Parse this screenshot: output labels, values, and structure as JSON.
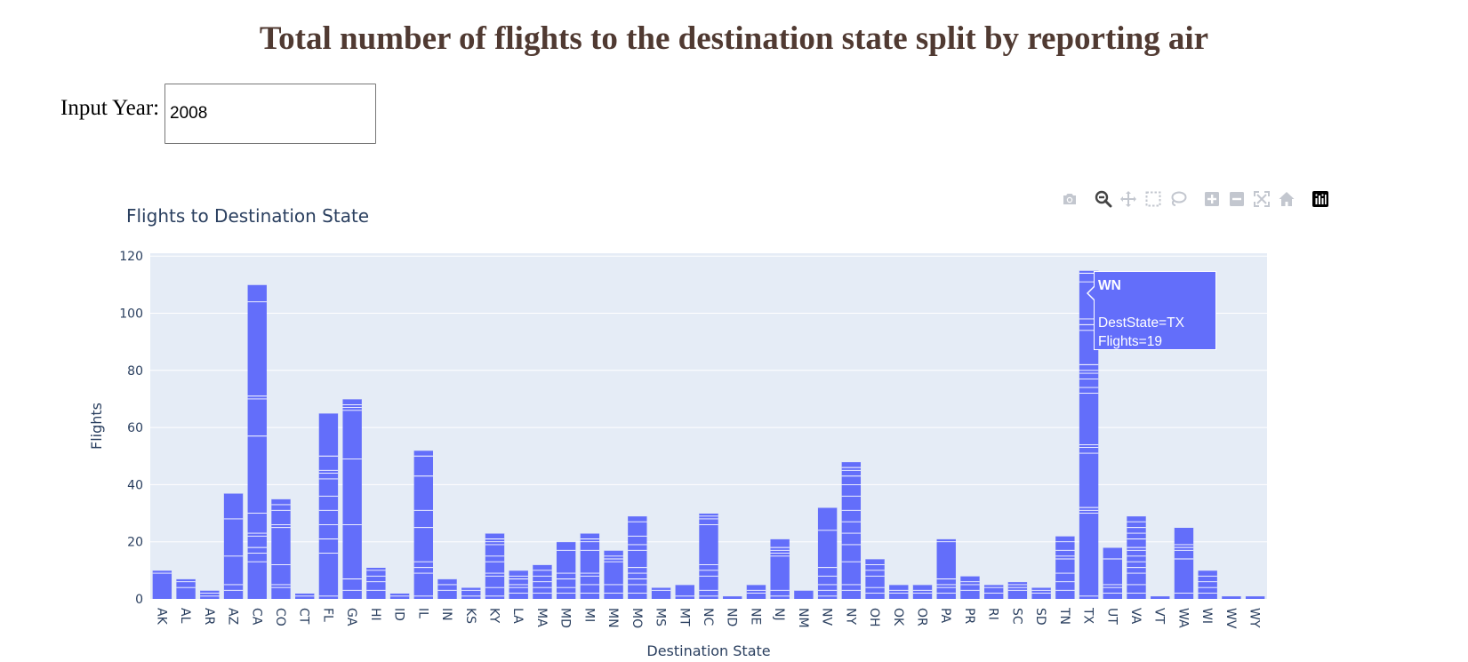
{
  "page": {
    "title": "Total number of flights to the destination state split by reporting air"
  },
  "input": {
    "label": "Input Year:",
    "value": "2008"
  },
  "modebar": {
    "buttons": [
      {
        "name": "camera-icon"
      },
      {
        "name": "zoom-icon",
        "active": true
      },
      {
        "name": "pan-icon"
      },
      {
        "name": "box-select-icon"
      },
      {
        "name": "lasso-select-icon"
      },
      {
        "name": "zoom-in-icon"
      },
      {
        "name": "zoom-out-icon"
      },
      {
        "name": "autoscale-icon"
      },
      {
        "name": "reset-axes-icon"
      },
      {
        "name": "plotly-logo-icon"
      }
    ]
  },
  "tooltip": {
    "series": "WN",
    "line1": "DestState=TX",
    "line2": "Flights=19"
  },
  "chart_data": {
    "type": "bar",
    "stacked": true,
    "title": "Flights to Destination State",
    "xlabel": "Destination State",
    "ylabel": "Flights",
    "ylim": [
      0,
      121
    ],
    "yticks": [
      0,
      20,
      40,
      60,
      80,
      100,
      120
    ],
    "grid": true,
    "bar_color": "#636EFA",
    "plot_bg": "#E5ECF6",
    "categories": [
      "AK",
      "AL",
      "AR",
      "AZ",
      "CA",
      "CO",
      "CT",
      "FL",
      "GA",
      "HI",
      "ID",
      "IL",
      "IN",
      "KS",
      "KY",
      "LA",
      "MA",
      "MD",
      "MI",
      "MN",
      "MO",
      "MS",
      "MT",
      "NC",
      "ND",
      "NE",
      "NJ",
      "NM",
      "NV",
      "NY",
      "OH",
      "OK",
      "OR",
      "PA",
      "PR",
      "RI",
      "SC",
      "SD",
      "TN",
      "TX",
      "UT",
      "VA",
      "VT",
      "WA",
      "WI",
      "WV",
      "WY"
    ],
    "totals": [
      10,
      7,
      3,
      37,
      110,
      35,
      2,
      65,
      70,
      11,
      2,
      52,
      7,
      4,
      23,
      10,
      12,
      20,
      23,
      17,
      29,
      4,
      5,
      30,
      1,
      5,
      21,
      3,
      32,
      48,
      14,
      5,
      5,
      21,
      8,
      5,
      6,
      4,
      22,
      115,
      18,
      29,
      1,
      25,
      10,
      1,
      1
    ],
    "segment_boundaries": [
      [
        9
      ],
      [
        4,
        6
      ],
      [
        1,
        2
      ],
      [
        3,
        5,
        15,
        28
      ],
      [
        13,
        16,
        18,
        22,
        23,
        30,
        57,
        70,
        71,
        104
      ],
      [
        4,
        5,
        12,
        25,
        26,
        31,
        33
      ],
      [
        1
      ],
      [
        1,
        16,
        21,
        26,
        31,
        36,
        42,
        44,
        45,
        50
      ],
      [
        3,
        7,
        26,
        49,
        66,
        67,
        68
      ],
      [
        3,
        6,
        8,
        10
      ],
      [
        1
      ],
      [
        1,
        9,
        11,
        13,
        25,
        31,
        43,
        50
      ],
      [
        3,
        5
      ],
      [
        1,
        3
      ],
      [
        1,
        4,
        8,
        9,
        13,
        15,
        19,
        20,
        21
      ],
      [
        2,
        4,
        5,
        7,
        8
      ],
      [
        2,
        4,
        6,
        8,
        10
      ],
      [
        2,
        4,
        7,
        9,
        17
      ],
      [
        2,
        5,
        8,
        9,
        17,
        20,
        21
      ],
      [
        2,
        5,
        13,
        14,
        15
      ],
      [
        2,
        5,
        7,
        9,
        11,
        17,
        19,
        22,
        27
      ],
      [
        3
      ],
      [
        1
      ],
      [
        1,
        3,
        8,
        10,
        12,
        26,
        28,
        29
      ],
      [],
      [
        2,
        3
      ],
      [
        1,
        3,
        15,
        16,
        17,
        18
      ],
      [],
      [
        1,
        3,
        5,
        8,
        11,
        24
      ],
      [
        3,
        5,
        13,
        19,
        23,
        27,
        31,
        36,
        40,
        43,
        45,
        46
      ],
      [
        2,
        4,
        8,
        10,
        12
      ],
      [
        2,
        3
      ],
      [
        2,
        3
      ],
      [
        2,
        4,
        5,
        7,
        20
      ],
      [
        3,
        5,
        6
      ],
      [
        2,
        4
      ],
      [
        3,
        4,
        5
      ],
      [
        2,
        3
      ],
      [
        3,
        6,
        9,
        14,
        15,
        17,
        20
      ],
      [
        1,
        30,
        31,
        32,
        51,
        53,
        54,
        72,
        74,
        77,
        79,
        80,
        82,
        94,
        96,
        98,
        111,
        114
      ],
      [
        2,
        4,
        5,
        14
      ],
      [
        2,
        5,
        9,
        11,
        13,
        15,
        17,
        18,
        21,
        23,
        25,
        27
      ],
      [],
      [
        2,
        14,
        17,
        18,
        19
      ],
      [
        2,
        4,
        6,
        8
      ],
      [],
      []
    ],
    "highlighted": {
      "category": "TX",
      "series": "WN",
      "value": 19
    }
  }
}
